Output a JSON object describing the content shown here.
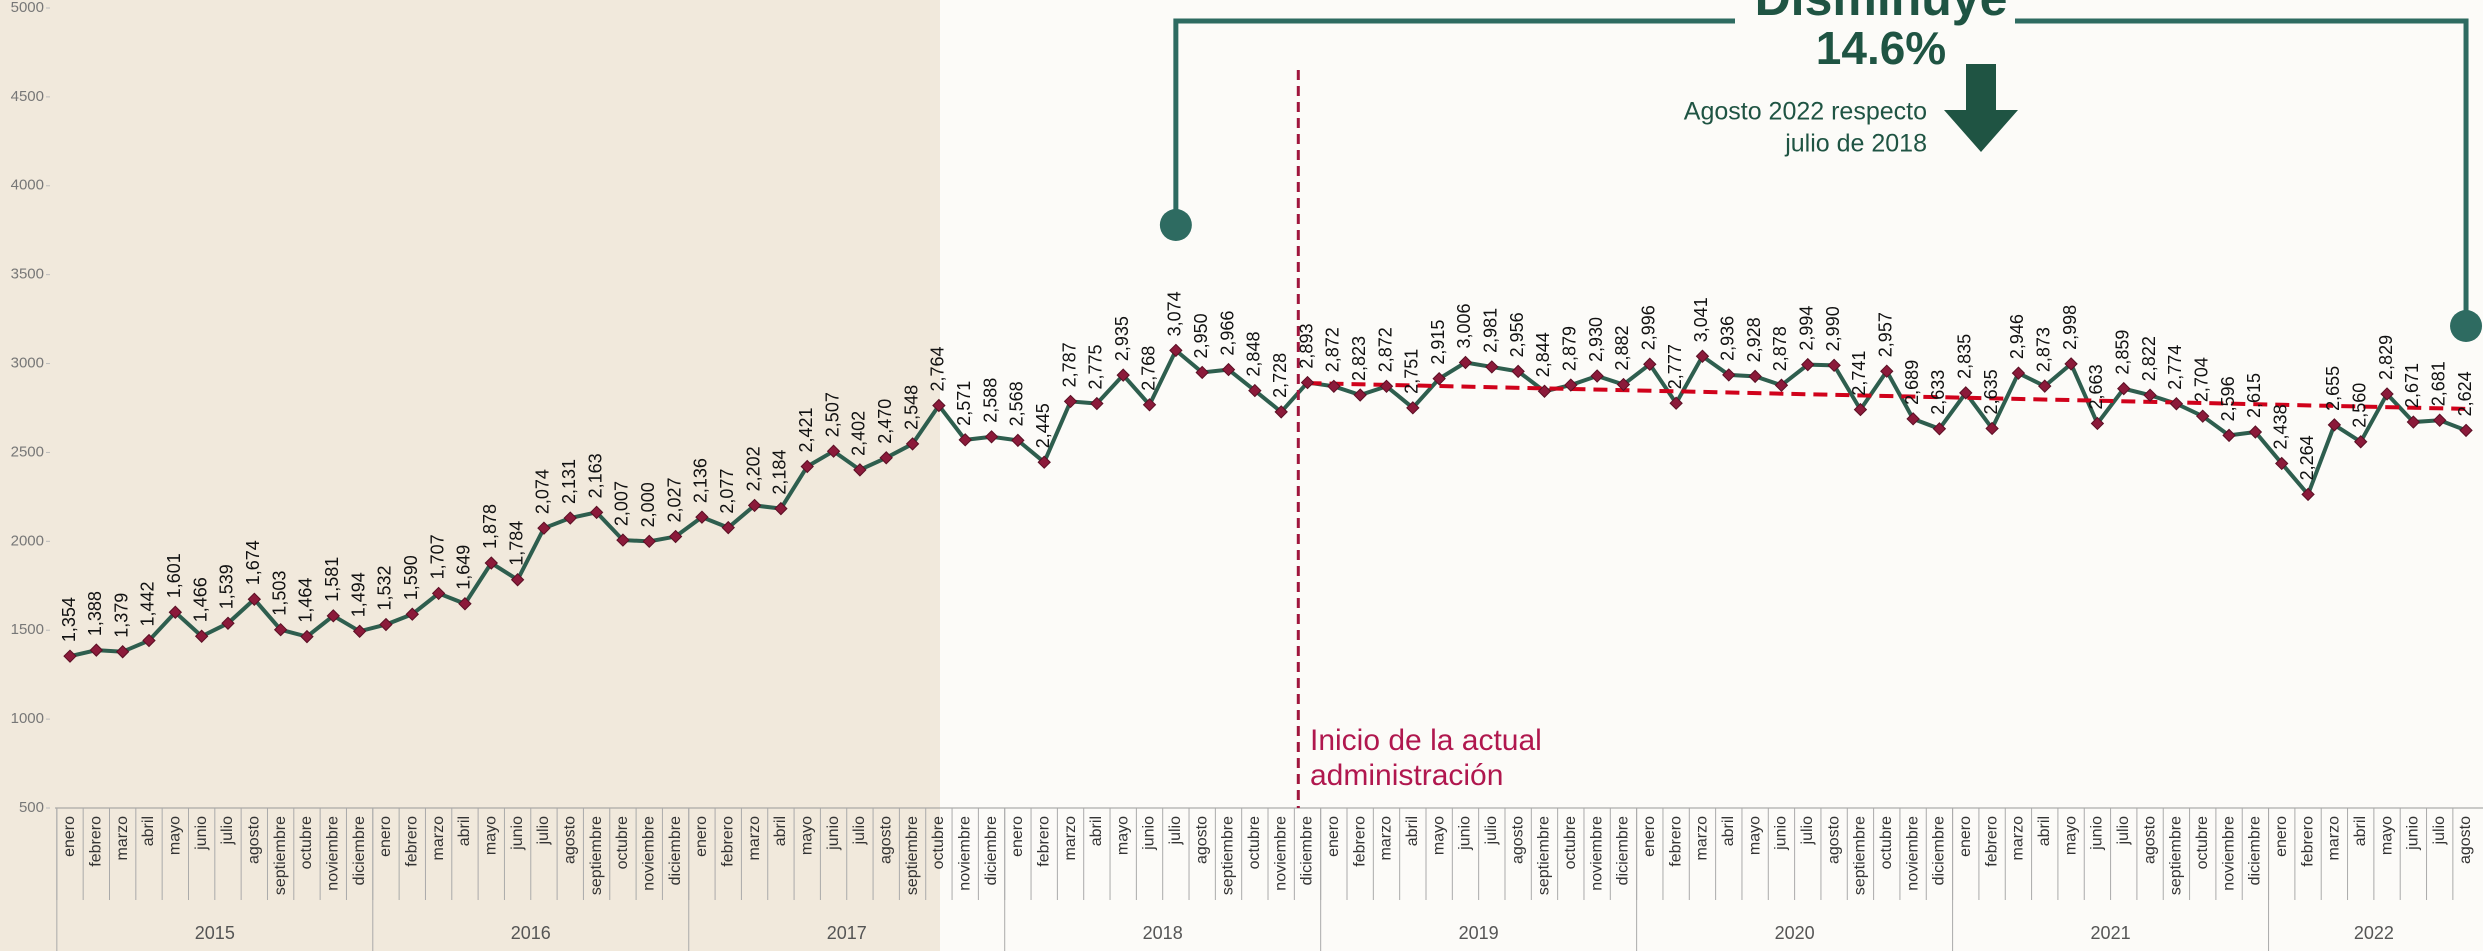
{
  "chart_data": {
    "type": "line",
    "title": "Disminuye",
    "subtitle": "14.6%",
    "note": [
      "Agosto 2022 respecto",
      "julio de 2018"
    ],
    "annotation": [
      "Inicio de la actual",
      "administración"
    ],
    "categories": [
      "enero",
      "febrero",
      "marzo",
      "abril",
      "mayo",
      "junio",
      "julio",
      "agosto",
      "septiembre",
      "octubre",
      "noviembre",
      "diciembre",
      "enero",
      "febrero",
      "marzo",
      "abril",
      "mayo",
      "junio",
      "julio",
      "agosto",
      "septiembre",
      "octubre",
      "noviembre",
      "diciembre",
      "enero",
      "febrero",
      "marzo",
      "abril",
      "mayo",
      "junio",
      "julio",
      "agosto",
      "septiembre",
      "octubre",
      "noviembre",
      "diciembre",
      "enero",
      "febrero",
      "marzo",
      "abril",
      "mayo",
      "junio",
      "julio",
      "agosto",
      "septiembre",
      "octubre",
      "noviembre",
      "diciembre",
      "enero",
      "febrero",
      "marzo",
      "abril",
      "mayo",
      "junio",
      "julio",
      "agosto",
      "septiembre",
      "octubre",
      "noviembre",
      "diciembre",
      "enero",
      "febrero",
      "marzo",
      "abril",
      "mayo",
      "junio",
      "julio",
      "agosto",
      "septiembre",
      "octubre",
      "noviembre",
      "diciembre",
      "enero",
      "febrero",
      "marzo",
      "abril",
      "mayo",
      "junio",
      "julio",
      "agosto",
      "septiembre",
      "octubre",
      "noviembre",
      "diciembre",
      "enero",
      "febrero",
      "marzo",
      "abril",
      "mayo",
      "junio",
      "julio",
      "agosto"
    ],
    "years": [
      "2015",
      "2016",
      "2017",
      "2018",
      "2019",
      "2020",
      "2021",
      "2022"
    ],
    "series": [
      {
        "color": "#2e5e4e",
        "marker_color": "#8b1a3a",
        "values": [
          1354,
          1388,
          1379,
          1442,
          1601,
          1466,
          1539,
          1674,
          1503,
          1464,
          1581,
          1494,
          1532,
          1590,
          1707,
          1649,
          1878,
          1784,
          2074,
          2131,
          2163,
          2007,
          2000,
          2027,
          2136,
          2077,
          2202,
          2184,
          2421,
          2507,
          2402,
          2470,
          2548,
          2764,
          2571,
          2588,
          2568,
          2445,
          2787,
          2775,
          2935,
          2768,
          3074,
          2950,
          2966,
          2848,
          2728,
          2893,
          2872,
          2823,
          2872,
          2751,
          2915,
          3006,
          2981,
          2956,
          2844,
          2879,
          2930,
          2882,
          2996,
          2777,
          3041,
          2936,
          2928,
          2878,
          2994,
          2990,
          2741,
          2957,
          2689,
          2633,
          2835,
          2635,
          2946,
          2873,
          2998,
          2663,
          2859,
          2822,
          2774,
          2704,
          2596,
          2615,
          2438,
          2264,
          2655,
          2560,
          2829,
          2671,
          2681,
          2624
        ],
        "value_labels": [
          "1,354",
          "1,388",
          "1,379",
          "1,442",
          "1,601",
          "1,466",
          "1,539",
          "1,674",
          "1,503",
          "1,464",
          "1,581",
          "1,494",
          "1,532",
          "1,590",
          "1,707",
          "1,649",
          "1,878",
          "1,784",
          "2,074",
          "2,131",
          "2,163",
          "2,007",
          "2,000",
          "2,027",
          "2,136",
          "2,077",
          "2,202",
          "2,184",
          "2,421",
          "2,507",
          "2,402",
          "2,470",
          "2,548",
          "2,764",
          "2,571",
          "2,588",
          "2,568",
          "2,445",
          "2,787",
          "2,775",
          "2,935",
          "2,768",
          "3,074",
          "2,950",
          "2,966",
          "2,848",
          "2,728",
          "2,893",
          "2,872",
          "2,823",
          "2,872",
          "2,751",
          "2,915",
          "3,006",
          "2,981",
          "2,956",
          "2,844",
          "2,879",
          "2,930",
          "2,882",
          "2,996",
          "2,777",
          "3,041",
          "2,936",
          "2,928",
          "2,878",
          "2,994",
          "2,990",
          "2,741",
          "2,957",
          "2,689",
          "2,633",
          "2,835",
          "2,635",
          "2,946",
          "2,873",
          "2,998",
          "2,663",
          "2,859",
          "2,822",
          "2,774",
          "2,704",
          "2,596",
          "2,615",
          "2,438",
          "2,264",
          "2,655",
          "2,560",
          "2,829",
          "2,671",
          "2,681",
          "2,624"
        ]
      }
    ],
    "trend": {
      "color": "#d0021b",
      "start": 2890,
      "end": 2745
    },
    "ylim": [
      500,
      5000
    ],
    "yticks": [
      500,
      1000,
      1500,
      2000,
      2500,
      3000,
      3500,
      4000,
      4500,
      5000
    ]
  }
}
